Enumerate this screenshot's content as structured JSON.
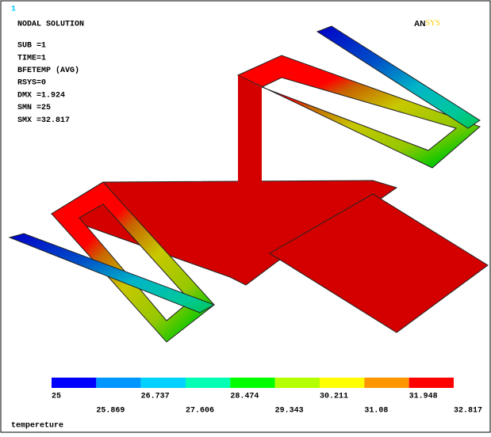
{
  "window_number": "1",
  "header": {
    "title": "NODAL SOLUTION",
    "lines": [
      "SUB =1",
      "TIME=1",
      "BFETEMP  (AVG)",
      "RSYS=0",
      "DMX =1.924",
      "SMN =25",
      "SMX =32.817"
    ]
  },
  "logo": {
    "part1": "AN",
    "part2": "SYS"
  },
  "legend": {
    "colors": [
      "#0000ff",
      "#0096ff",
      "#00d2ff",
      "#00ffb4",
      "#00ff00",
      "#b4ff00",
      "#ffff00",
      "#ff9600",
      "#ff0000"
    ],
    "labels": [
      25,
      25.869,
      26.737,
      27.606,
      28.474,
      29.343,
      30.211,
      31.08,
      31.948,
      32.817
    ]
  },
  "footer": "tempereture"
}
